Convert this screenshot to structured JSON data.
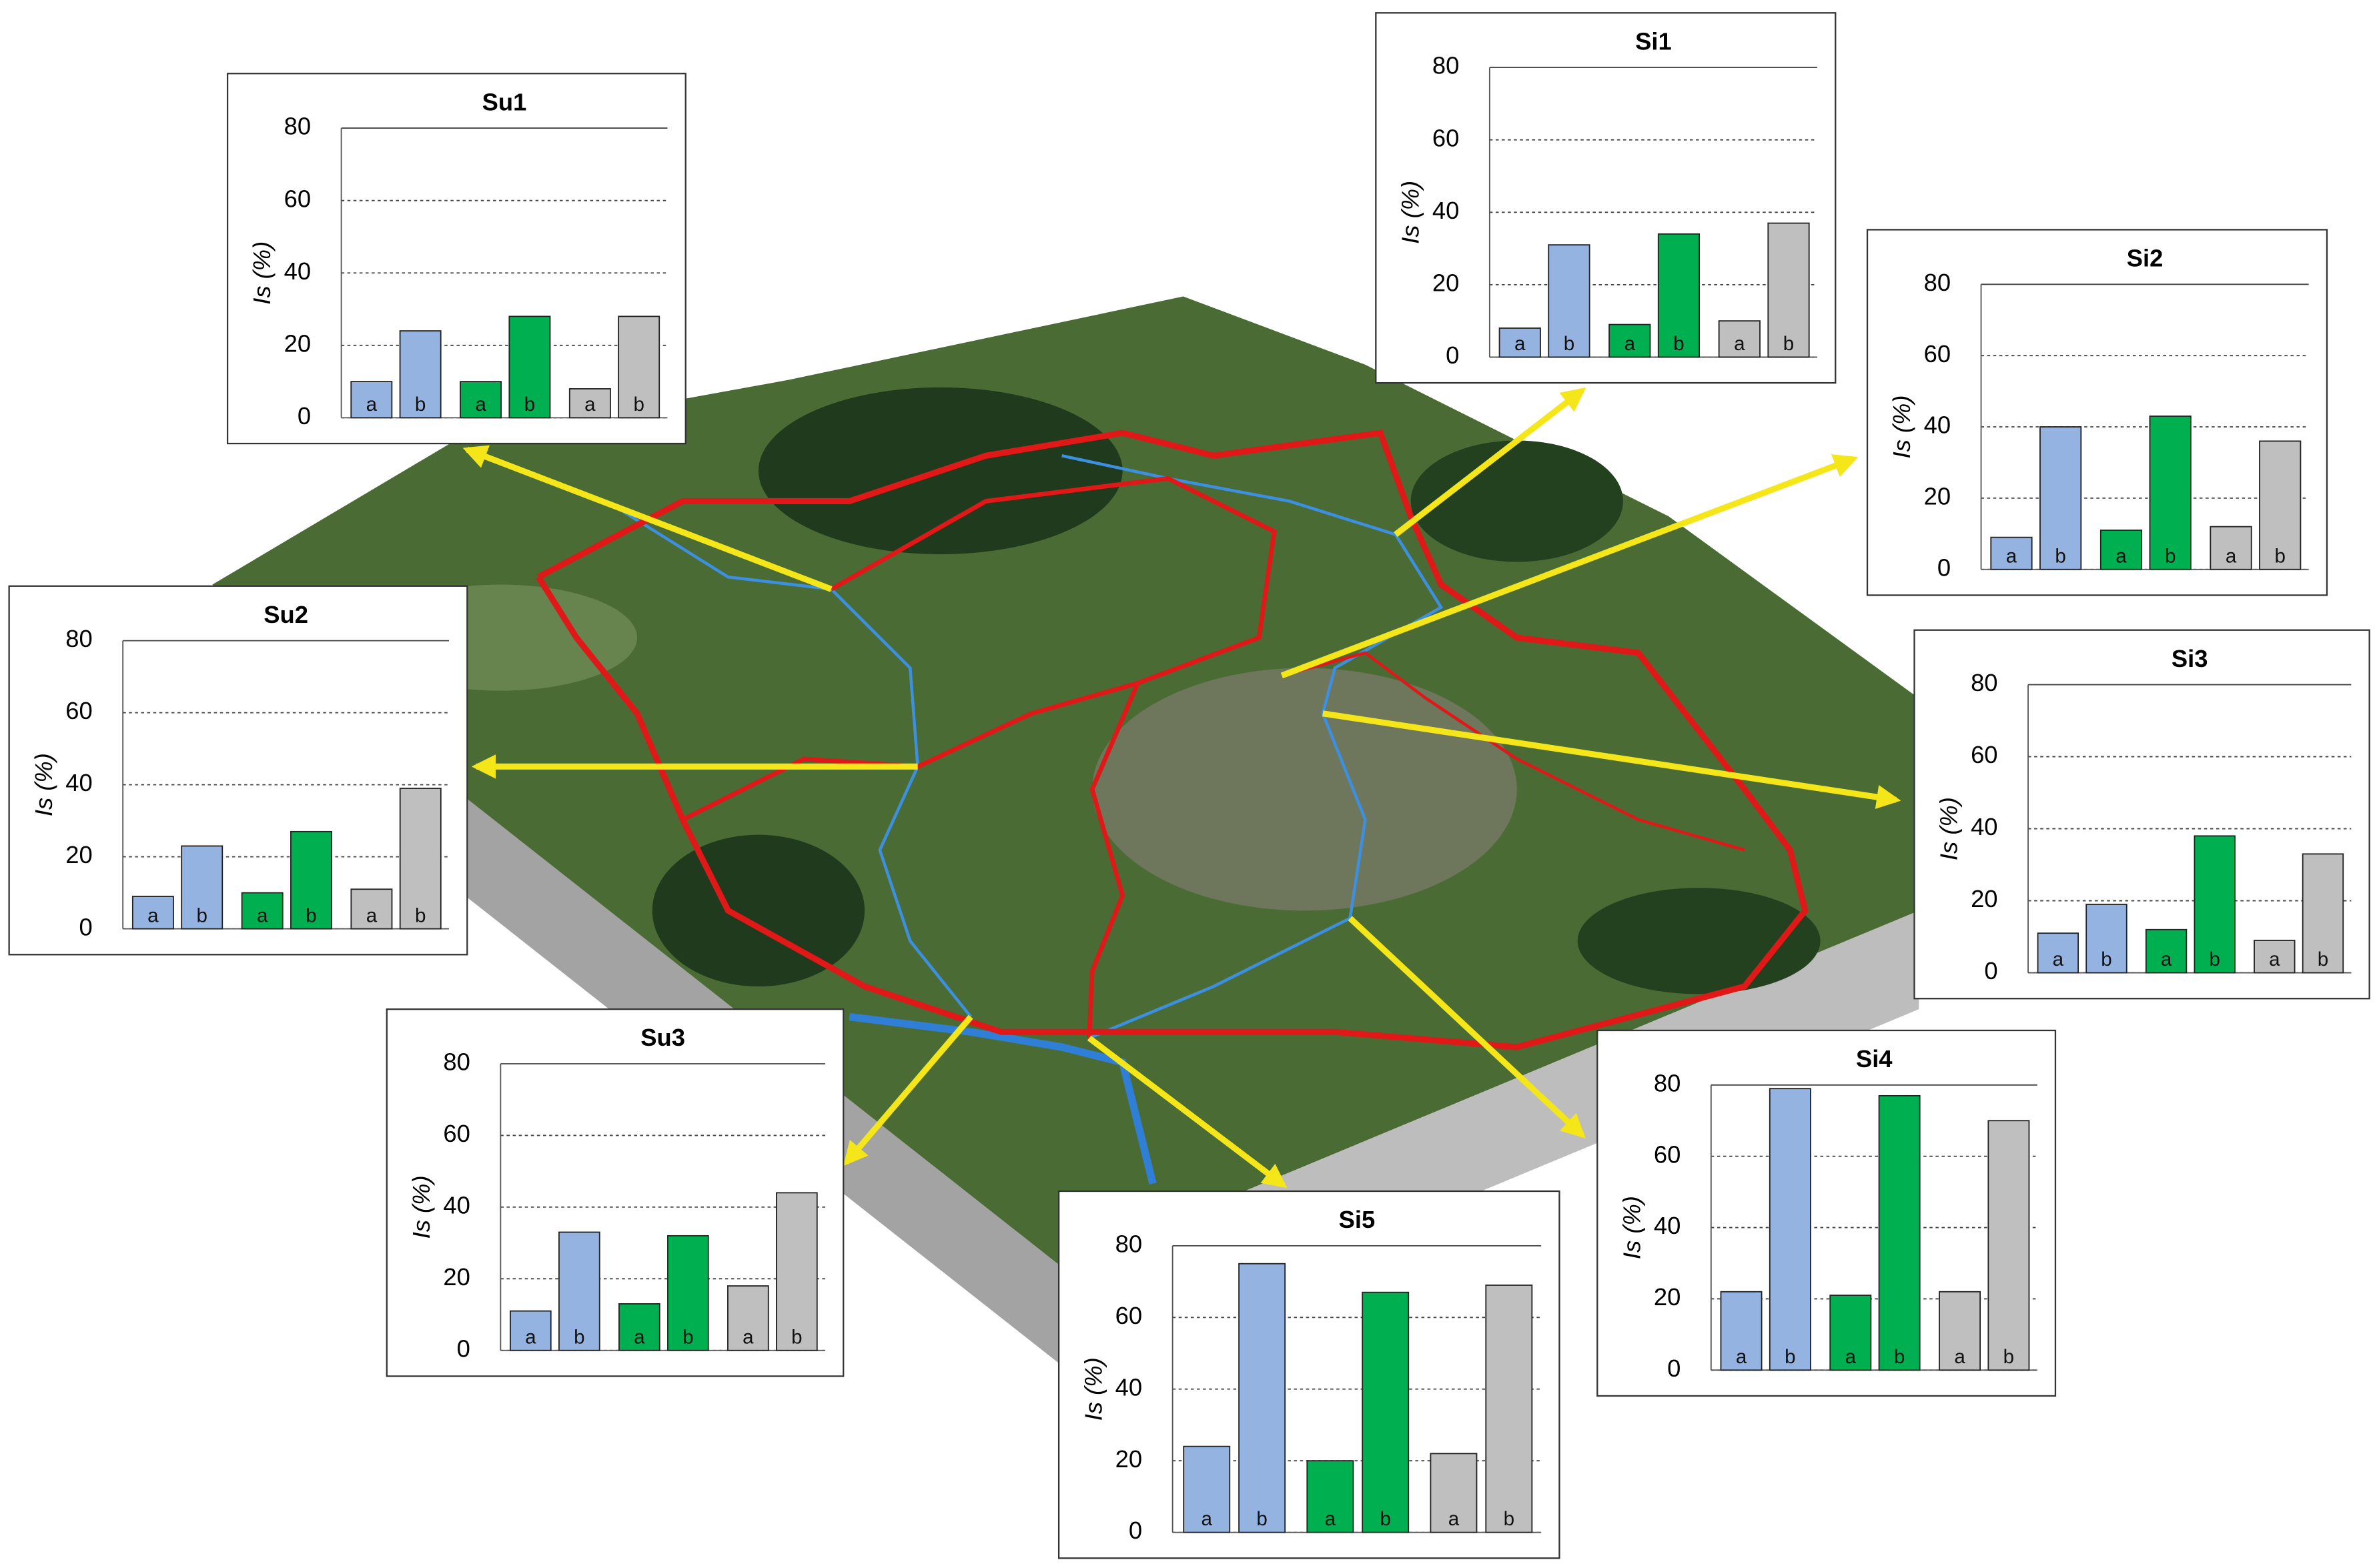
{
  "chart_data": [
    {
      "type": "bar",
      "title": "Su1",
      "y_label": "Is (%)",
      "categories": [
        "a",
        "b",
        "a",
        "b",
        "a",
        "b"
      ],
      "values": [
        10,
        24,
        10,
        28,
        8,
        28
      ],
      "colors": [
        "#95b3e0",
        "#95b3e0",
        "#00b050",
        "#00b050",
        "#bfbfbf",
        "#bfbfbf"
      ],
      "ylim": [
        0,
        80
      ],
      "yticks": [
        0,
        20,
        40,
        60,
        80
      ],
      "grid": true
    },
    {
      "type": "bar",
      "title": "Su2",
      "y_label": "Is (%)",
      "categories": [
        "a",
        "b",
        "a",
        "b",
        "a",
        "b"
      ],
      "values": [
        9,
        23,
        10,
        27,
        11,
        39
      ],
      "colors": [
        "#95b3e0",
        "#95b3e0",
        "#00b050",
        "#00b050",
        "#bfbfbf",
        "#bfbfbf"
      ],
      "ylim": [
        0,
        80
      ],
      "yticks": [
        0,
        20,
        40,
        60,
        80
      ],
      "grid": true
    },
    {
      "type": "bar",
      "title": "Su3",
      "y_label": "Is (%)",
      "categories": [
        "a",
        "b",
        "a",
        "b",
        "a",
        "b"
      ],
      "values": [
        11,
        33,
        13,
        32,
        18,
        44
      ],
      "colors": [
        "#95b3e0",
        "#95b3e0",
        "#00b050",
        "#00b050",
        "#bfbfbf",
        "#bfbfbf"
      ],
      "ylim": [
        0,
        80
      ],
      "yticks": [
        0,
        20,
        40,
        60,
        80
      ],
      "grid": true
    },
    {
      "type": "bar",
      "title": "Si1",
      "y_label": "Is (%)",
      "categories": [
        "a",
        "b",
        "a",
        "b",
        "a",
        "b"
      ],
      "values": [
        8,
        31,
        9,
        34,
        10,
        37
      ],
      "colors": [
        "#95b3e0",
        "#95b3e0",
        "#00b050",
        "#00b050",
        "#bfbfbf",
        "#bfbfbf"
      ],
      "ylim": [
        0,
        80
      ],
      "yticks": [
        0,
        20,
        40,
        60,
        80
      ],
      "grid": true
    },
    {
      "type": "bar",
      "title": "Si2",
      "y_label": "Is (%)",
      "categories": [
        "a",
        "b",
        "a",
        "b",
        "a",
        "b"
      ],
      "values": [
        9,
        40,
        11,
        43,
        12,
        36
      ],
      "colors": [
        "#95b3e0",
        "#95b3e0",
        "#00b050",
        "#00b050",
        "#bfbfbf",
        "#bfbfbf"
      ],
      "ylim": [
        0,
        80
      ],
      "yticks": [
        0,
        20,
        40,
        60,
        80
      ],
      "grid": true
    },
    {
      "type": "bar",
      "title": "Si3",
      "y_label": "Is (%)",
      "categories": [
        "a",
        "b",
        "a",
        "b",
        "a",
        "b"
      ],
      "values": [
        11,
        19,
        12,
        38,
        9,
        33
      ],
      "colors": [
        "#95b3e0",
        "#95b3e0",
        "#00b050",
        "#00b050",
        "#bfbfbf",
        "#bfbfbf"
      ],
      "ylim": [
        0,
        80
      ],
      "yticks": [
        0,
        20,
        40,
        60,
        80
      ],
      "grid": true
    },
    {
      "type": "bar",
      "title": "Si4",
      "y_label": "Is (%)",
      "categories": [
        "a",
        "b",
        "a",
        "b",
        "a",
        "b"
      ],
      "values": [
        22,
        79,
        21,
        77,
        22,
        70
      ],
      "colors": [
        "#95b3e0",
        "#95b3e0",
        "#00b050",
        "#00b050",
        "#bfbfbf",
        "#bfbfbf"
      ],
      "ylim": [
        0,
        80
      ],
      "yticks": [
        0,
        20,
        40,
        60,
        80
      ],
      "grid": true
    },
    {
      "type": "bar",
      "title": "Si5",
      "y_label": "Is (%)",
      "categories": [
        "a",
        "b",
        "a",
        "b",
        "a",
        "b"
      ],
      "values": [
        24,
        75,
        20,
        67,
        22,
        69
      ],
      "colors": [
        "#95b3e0",
        "#95b3e0",
        "#00b050",
        "#00b050",
        "#bfbfbf",
        "#bfbfbf"
      ],
      "ylim": [
        0,
        80
      ],
      "yticks": [
        0,
        20,
        40,
        60,
        80
      ],
      "grid": true
    }
  ]
}
